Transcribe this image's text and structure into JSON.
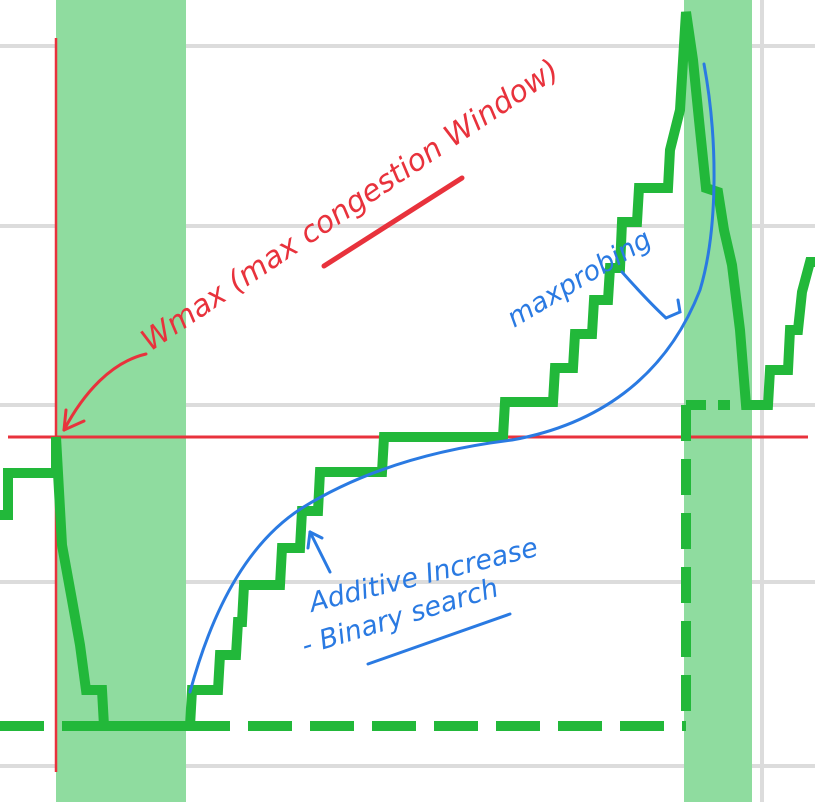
{
  "annotations": {
    "wmax_label": "Wmax (max congestion Window)",
    "max_probing_label": "maxprobing",
    "additive_increase_label": "Additive Increase",
    "binary_search_label": "- Binary search"
  },
  "colors": {
    "background": "#ffffff",
    "grid": "#dcdcdc",
    "highlight_band": "#8fdc9f",
    "cwnd_line": "#22b83a",
    "marker_red": "#e8323c",
    "ink_blue": "#2a7ae2"
  }
}
